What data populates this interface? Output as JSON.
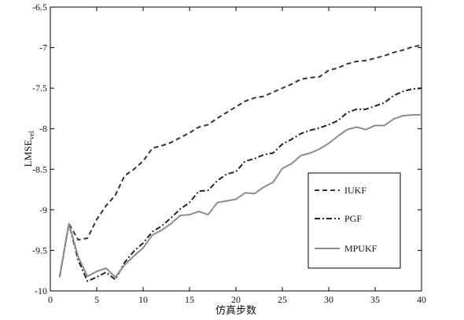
{
  "chart_data": {
    "type": "line",
    "title": "",
    "xlabel": "仿真步数",
    "ylabel_main": "LMSE",
    "ylabel_sub": "vel",
    "xlim": [
      0,
      40
    ],
    "ylim": [
      -10,
      -6.5
    ],
    "xticks": [
      0,
      5,
      10,
      15,
      20,
      25,
      30,
      35,
      40
    ],
    "yticks": [
      -10,
      -9.5,
      -9,
      -8.5,
      -8,
      -7.5,
      -7,
      -6.5
    ],
    "grid": false,
    "legend_position": "lower-right",
    "x": [
      1,
      2,
      3,
      4,
      5,
      6,
      7,
      8,
      9,
      10,
      11,
      12,
      13,
      14,
      15,
      16,
      17,
      18,
      19,
      20,
      21,
      22,
      23,
      24,
      25,
      26,
      27,
      28,
      29,
      30,
      31,
      32,
      33,
      34,
      35,
      36,
      37,
      38,
      39,
      40
    ],
    "series": [
      {
        "name": "IUKF",
        "style": "dashed",
        "color": "#333333",
        "values": [
          -9.83,
          -9.17,
          -9.37,
          -9.35,
          -9.12,
          -8.95,
          -8.82,
          -8.58,
          -8.5,
          -8.4,
          -8.24,
          -8.21,
          -8.17,
          -8.11,
          -8.05,
          -7.98,
          -7.95,
          -7.87,
          -7.8,
          -7.73,
          -7.66,
          -7.62,
          -7.6,
          -7.55,
          -7.5,
          -7.45,
          -7.39,
          -7.37,
          -7.36,
          -7.28,
          -7.25,
          -7.2,
          -7.17,
          -7.16,
          -7.13,
          -7.1,
          -7.06,
          -7.03,
          -6.99,
          -6.97
        ]
      },
      {
        "name": "PGF",
        "style": "dashdot",
        "color": "#222222",
        "values": [
          -9.83,
          -9.17,
          -9.62,
          -9.88,
          -9.83,
          -9.77,
          -9.86,
          -9.65,
          -9.51,
          -9.41,
          -9.27,
          -9.2,
          -9.1,
          -8.99,
          -8.91,
          -8.77,
          -8.76,
          -8.64,
          -8.56,
          -8.53,
          -8.4,
          -8.37,
          -8.32,
          -8.3,
          -8.19,
          -8.13,
          -8.06,
          -8.02,
          -7.99,
          -7.95,
          -7.9,
          -7.8,
          -7.76,
          -7.76,
          -7.72,
          -7.68,
          -7.59,
          -7.54,
          -7.51,
          -7.5
        ]
      },
      {
        "name": "MPUKF",
        "style": "solid",
        "color": "#8c8c8c",
        "values": [
          -9.83,
          -9.17,
          -9.58,
          -9.82,
          -9.76,
          -9.72,
          -9.83,
          -9.68,
          -9.57,
          -9.47,
          -9.31,
          -9.25,
          -9.17,
          -9.07,
          -9.06,
          -9.02,
          -9.06,
          -8.91,
          -8.89,
          -8.87,
          -8.79,
          -8.8,
          -8.72,
          -8.66,
          -8.49,
          -8.43,
          -8.33,
          -8.3,
          -8.25,
          -8.18,
          -8.09,
          -8.01,
          -7.98,
          -8.01,
          -7.96,
          -7.96,
          -7.88,
          -7.84,
          -7.83,
          -7.83
        ]
      }
    ]
  }
}
